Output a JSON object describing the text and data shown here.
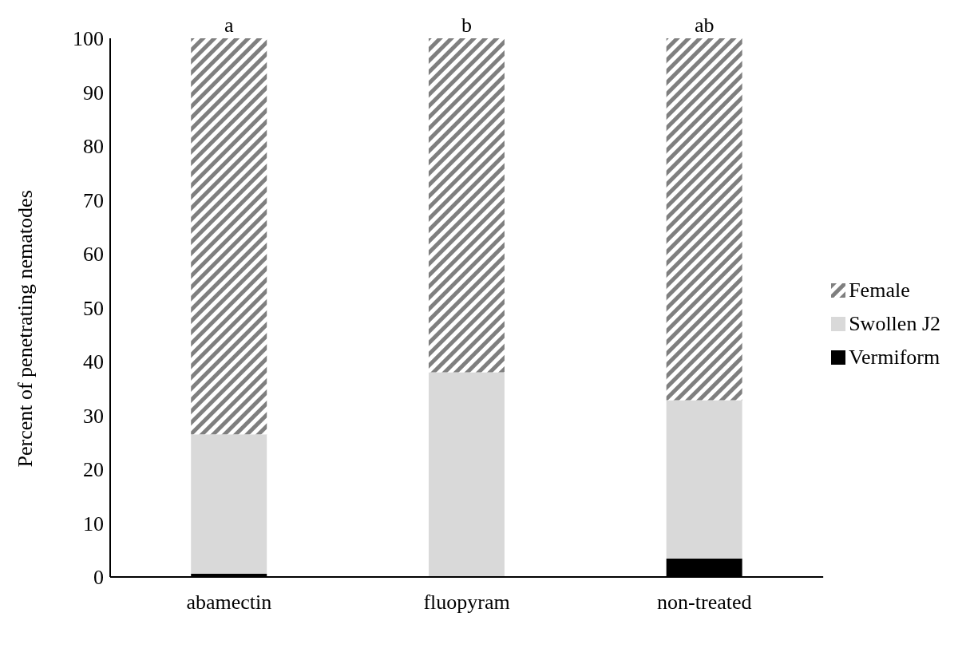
{
  "chart_data": {
    "type": "bar",
    "stacked": true,
    "ylabel": "Percent of penetrating nematodes",
    "categories": [
      "abamectin",
      "fluopyram",
      "non-treated"
    ],
    "series": [
      {
        "name": "Vermiform",
        "color": "#000000",
        "values": [
          0.6,
          0,
          3.4
        ]
      },
      {
        "name": "Swollen J2",
        "color": "#d9d9d9",
        "values": [
          25.9,
          38,
          29.4
        ]
      },
      {
        "name": "Female",
        "color": "#7f7f7f",
        "values": [
          73.5,
          62,
          67.2
        ]
      }
    ],
    "ylim": [
      0,
      100
    ],
    "yticks": [
      0,
      10,
      20,
      30,
      40,
      50,
      60,
      70,
      80,
      90,
      100
    ],
    "grid": false,
    "legend": "right",
    "annotations": [
      {
        "text": "a",
        "x": "abamectin",
        "y": 100
      },
      {
        "text": "b",
        "x": "fluopyram",
        "y": 100
      },
      {
        "text": "ab",
        "x": "non-treated",
        "y": 100
      }
    ]
  }
}
